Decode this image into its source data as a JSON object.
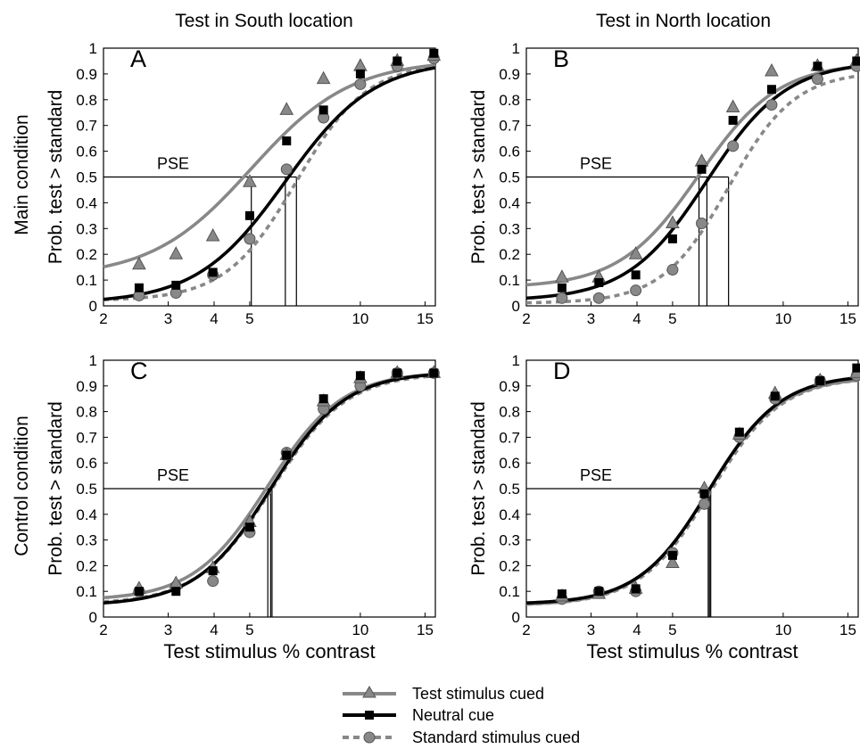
{
  "column_titles": [
    "Test in South location",
    "Test in North location"
  ],
  "row_titles": [
    "Main condition",
    "Control condition"
  ],
  "series_styles": [
    {
      "name": "Test stimulus cued",
      "color": "#888888",
      "marker": "triangle",
      "dash": false
    },
    {
      "name": "Neutral cue",
      "color": "#000000",
      "marker": "square",
      "dash": false
    },
    {
      "name": "Standard stimulus cued",
      "color": "#888888",
      "marker": "circle",
      "dash": true
    }
  ],
  "chart_data": [
    {
      "type": "line",
      "panel": "A",
      "x_scale": "log",
      "xlim": [
        2,
        16
      ],
      "ylim": [
        0,
        1
      ],
      "xticks": [
        2,
        3,
        4,
        5,
        10,
        15
      ],
      "yticks": [
        0,
        0.1,
        0.2,
        0.3,
        0.4,
        0.5,
        0.6,
        0.7,
        0.8,
        0.9,
        1
      ],
      "ylabel": "Prob. test > standard",
      "xlabel": "",
      "annotation": "PSE",
      "pse": [
        5.05,
        6.25,
        6.7
      ],
      "series": [
        {
          "name": "Test stimulus cued",
          "x": [
            2.5,
            3.15,
            3.97,
            5.0,
            6.3,
            7.94,
            10.0,
            12.6,
            15.85
          ],
          "y": [
            0.16,
            0.2,
            0.27,
            0.48,
            0.76,
            0.88,
            0.93,
            0.95,
            0.97
          ],
          "fit": {
            "g": 0.11,
            "l": 0.045,
            "a": 5.05,
            "b": 3.2
          }
        },
        {
          "name": "Neutral cue",
          "x": [
            2.5,
            3.15,
            3.97,
            5.0,
            6.3,
            7.94,
            10.0,
            12.6,
            15.85
          ],
          "y": [
            0.07,
            0.08,
            0.13,
            0.35,
            0.64,
            0.76,
            0.9,
            0.95,
            0.98
          ],
          "fit": {
            "g": 0.01,
            "l": 0.045,
            "a": 6.25,
            "b": 3.6
          }
        },
        {
          "name": "Standard stimulus cued",
          "x": [
            2.5,
            3.15,
            3.97,
            5.0,
            6.3,
            7.94,
            10.0,
            12.6,
            15.85
          ],
          "y": [
            0.04,
            0.05,
            0.12,
            0.26,
            0.53,
            0.73,
            0.86,
            0.93,
            0.96
          ],
          "fit": {
            "g": 0.02,
            "l": 0.055,
            "a": 6.7,
            "b": 4.5
          }
        }
      ]
    },
    {
      "type": "line",
      "panel": "B",
      "x_scale": "log",
      "xlim": [
        2,
        16
      ],
      "ylim": [
        0,
        1
      ],
      "xticks": [
        2,
        3,
        4,
        5,
        10,
        15
      ],
      "yticks": [
        0,
        0.1,
        0.2,
        0.3,
        0.4,
        0.5,
        0.6,
        0.7,
        0.8,
        0.9,
        1
      ],
      "ylabel": "Prob. test > standard",
      "xlabel": "",
      "annotation": "PSE",
      "pse": [
        5.9,
        6.2,
        7.1
      ],
      "series": [
        {
          "name": "Test stimulus cued",
          "x": [
            2.5,
            3.15,
            3.97,
            5.0,
            6.0,
            7.3,
            9.3,
            12.4,
            15.85
          ],
          "y": [
            0.11,
            0.11,
            0.2,
            0.32,
            0.56,
            0.77,
            0.91,
            0.93,
            0.95
          ],
          "fit": {
            "g": 0.07,
            "l": 0.055,
            "a": 5.9,
            "b": 4.0
          }
        },
        {
          "name": "Neutral cue",
          "x": [
            2.5,
            3.15,
            3.97,
            5.0,
            6.0,
            7.3,
            9.3,
            12.4,
            15.85
          ],
          "y": [
            0.07,
            0.09,
            0.12,
            0.26,
            0.53,
            0.72,
            0.84,
            0.93,
            0.95
          ],
          "fit": {
            "g": 0.02,
            "l": 0.05,
            "a": 6.2,
            "b": 4.0
          }
        },
        {
          "name": "Standard stimulus cued",
          "x": [
            2.5,
            3.15,
            3.97,
            5.0,
            6.0,
            7.3,
            9.3,
            12.4,
            15.85
          ],
          "y": [
            0.03,
            0.03,
            0.06,
            0.14,
            0.32,
            0.62,
            0.78,
            0.88,
            0.93
          ],
          "fit": {
            "g": 0.01,
            "l": 0.09,
            "a": 7.1,
            "b": 4.8
          }
        }
      ]
    },
    {
      "type": "line",
      "panel": "C",
      "x_scale": "log",
      "xlim": [
        2,
        16
      ],
      "ylim": [
        0,
        1
      ],
      "xticks": [
        2,
        3,
        4,
        5,
        10,
        15
      ],
      "yticks": [
        0,
        0.1,
        0.2,
        0.3,
        0.4,
        0.5,
        0.6,
        0.7,
        0.8,
        0.9,
        1
      ],
      "ylabel": "Prob. test > standard",
      "xlabel": "Test stimulus % contrast",
      "annotation": "PSE",
      "pse": [
        5.6,
        5.7,
        5.75
      ],
      "series": [
        {
          "name": "Test stimulus cued",
          "x": [
            2.5,
            3.15,
            3.97,
            5.0,
            6.3,
            7.94,
            10.0,
            12.6,
            15.85
          ],
          "y": [
            0.11,
            0.13,
            0.19,
            0.37,
            0.63,
            0.84,
            0.93,
            0.95,
            0.95
          ],
          "fit": {
            "g": 0.065,
            "l": 0.045,
            "a": 5.6,
            "b": 4.3
          }
        },
        {
          "name": "Neutral cue",
          "x": [
            2.5,
            3.15,
            3.97,
            5.0,
            6.3,
            7.94,
            10.0,
            12.6,
            15.85
          ],
          "y": [
            0.1,
            0.1,
            0.18,
            0.35,
            0.63,
            0.85,
            0.94,
            0.95,
            0.95
          ],
          "fit": {
            "g": 0.045,
            "l": 0.045,
            "a": 5.7,
            "b": 4.3
          }
        },
        {
          "name": "Standard stimulus cued",
          "x": [
            2.5,
            3.15,
            3.97,
            5.0,
            6.3,
            7.94,
            10.0,
            12.6,
            15.85
          ],
          "y": [
            0.1,
            0.12,
            0.14,
            0.33,
            0.64,
            0.81,
            0.9,
            0.95,
            0.95
          ],
          "fit": {
            "g": 0.05,
            "l": 0.05,
            "a": 5.75,
            "b": 4.3
          }
        }
      ]
    },
    {
      "type": "line",
      "panel": "D",
      "x_scale": "log",
      "xlim": [
        2,
        16
      ],
      "ylim": [
        0,
        1
      ],
      "xticks": [
        2,
        3,
        4,
        5,
        10,
        15
      ],
      "yticks": [
        0,
        0.1,
        0.2,
        0.3,
        0.4,
        0.5,
        0.6,
        0.7,
        0.8,
        0.9,
        1
      ],
      "ylabel": "Prob. test > standard",
      "xlabel": "Test stimulus % contrast",
      "annotation": "PSE",
      "pse": [
        6.25,
        6.3,
        6.35
      ],
      "series": [
        {
          "name": "Test stimulus cued",
          "x": [
            2.5,
            3.15,
            3.97,
            5.0,
            6.1,
            7.6,
            9.5,
            12.6,
            15.85
          ],
          "y": [
            0.08,
            0.09,
            0.11,
            0.21,
            0.5,
            0.71,
            0.87,
            0.92,
            0.95
          ],
          "fit": {
            "g": 0.045,
            "l": 0.065,
            "a": 6.25,
            "b": 4.5
          }
        },
        {
          "name": "Neutral cue",
          "x": [
            2.5,
            3.15,
            3.97,
            5.0,
            6.1,
            7.6,
            9.5,
            12.6,
            15.85
          ],
          "y": [
            0.09,
            0.1,
            0.11,
            0.24,
            0.48,
            0.72,
            0.86,
            0.92,
            0.97
          ],
          "fit": {
            "g": 0.05,
            "l": 0.055,
            "a": 6.3,
            "b": 4.5
          }
        },
        {
          "name": "Standard stimulus cued",
          "x": [
            2.5,
            3.15,
            3.97,
            5.0,
            6.1,
            7.6,
            9.5,
            12.6,
            15.85
          ],
          "y": [
            0.07,
            0.1,
            0.1,
            0.25,
            0.44,
            0.7,
            0.85,
            0.92,
            0.94
          ],
          "fit": {
            "g": 0.045,
            "l": 0.065,
            "a": 6.35,
            "b": 4.5
          }
        }
      ]
    }
  ]
}
